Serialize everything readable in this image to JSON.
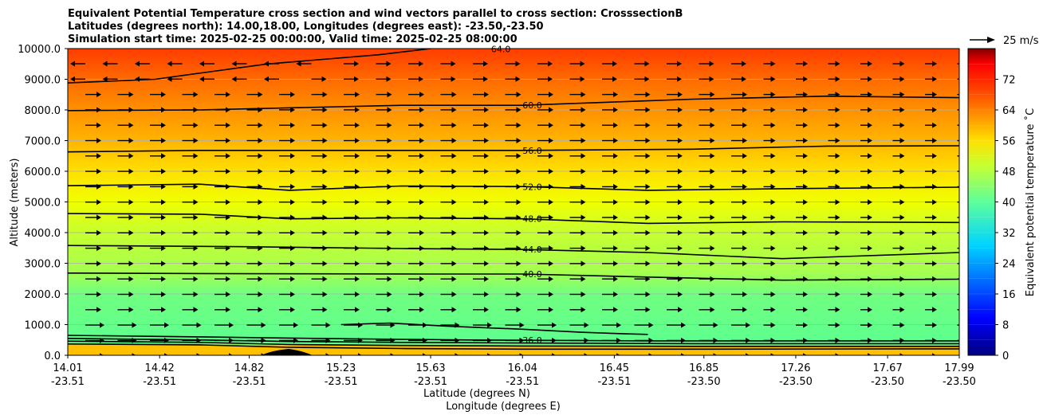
{
  "chart_data": {
    "type": "heatmap",
    "title_lines": [
      "Equivalent Potential Temperature cross section and wind vectors parallel to cross section: CrosssectionB",
      "Latitudes (degrees north): 14.00,18.00, Longitudes (degrees east): -23.50,-23.50",
      "Simulation start time: 2025-02-25 00:00:00, Valid time: 2025-02-25 08:00:00"
    ],
    "xlabel": "Latitude (degrees N)",
    "xlabel2": "Longitude (degrees E)",
    "ylabel": "Altitude (meters)",
    "xlim": [
      14.01,
      17.99
    ],
    "ylim": [
      0,
      10000
    ],
    "x_ticks": [
      {
        "lat": "14.01",
        "lon": "-23.51",
        "v": 14.01
      },
      {
        "lat": "14.42",
        "lon": "-23.51",
        "v": 14.42
      },
      {
        "lat": "14.82",
        "lon": "-23.51",
        "v": 14.82
      },
      {
        "lat": "15.23",
        "lon": "-23.51",
        "v": 15.23
      },
      {
        "lat": "15.63",
        "lon": "-23.51",
        "v": 15.63
      },
      {
        "lat": "16.04",
        "lon": "-23.51",
        "v": 16.04
      },
      {
        "lat": "16.45",
        "lon": "-23.51",
        "v": 16.45
      },
      {
        "lat": "16.85",
        "lon": "-23.50",
        "v": 16.85
      },
      {
        "lat": "17.26",
        "lon": "-23.50",
        "v": 17.26
      },
      {
        "lat": "17.67",
        "lon": "-23.50",
        "v": 17.67
      },
      {
        "lat": "17.99",
        "lon": "-23.50",
        "v": 17.99
      }
    ],
    "y_ticks": [
      {
        "label": "0.0",
        "v": 0
      },
      {
        "label": "1000.0",
        "v": 1000
      },
      {
        "label": "2000.0",
        "v": 2000
      },
      {
        "label": "3000.0",
        "v": 3000
      },
      {
        "label": "4000.0",
        "v": 4000
      },
      {
        "label": "5000.0",
        "v": 5000
      },
      {
        "label": "6000.0",
        "v": 6000
      },
      {
        "label": "7000.0",
        "v": 7000
      },
      {
        "label": "8000.0",
        "v": 8000
      },
      {
        "label": "9000.0",
        "v": 9000
      },
      {
        "label": "10000.0",
        "v": 10000
      }
    ],
    "grid": true,
    "colorbar": {
      "label": "Equivalent potential temperature ˚C",
      "min": 0,
      "max": 80,
      "ticks": [
        "0",
        "8",
        "16",
        "24",
        "32",
        "40",
        "48",
        "56",
        "64",
        "72"
      ]
    },
    "quiver_key": {
      "label": "25 m/s"
    },
    "contours": [
      {
        "level": "36.0",
        "label": "36.0",
        "points": [
          [
            14.01,
            650
          ],
          [
            14.6,
            600
          ],
          [
            15.0,
            560
          ],
          [
            15.23,
            540
          ],
          [
            15.8,
            500
          ],
          [
            16.6,
            470
          ],
          [
            17.99,
            470
          ]
        ]
      },
      {
        "level": "40.0",
        "label": "40.0",
        "points": [
          [
            14.01,
            2680
          ],
          [
            14.8,
            2660
          ],
          [
            15.6,
            2650
          ],
          [
            16.04,
            2650
          ],
          [
            16.6,
            2550
          ],
          [
            17.2,
            2450
          ],
          [
            17.99,
            2480
          ]
        ]
      },
      {
        "level": "44.0",
        "label": "44.0",
        "points": [
          [
            14.01,
            3580
          ],
          [
            14.8,
            3540
          ],
          [
            15.5,
            3480
          ],
          [
            16.04,
            3450
          ],
          [
            16.6,
            3350
          ],
          [
            17.2,
            3150
          ],
          [
            17.99,
            3350
          ]
        ]
      },
      {
        "level": "48.0",
        "label": "48.0",
        "points": [
          [
            14.01,
            4620
          ],
          [
            14.6,
            4600
          ],
          [
            15.0,
            4450
          ],
          [
            15.5,
            4480
          ],
          [
            16.04,
            4450
          ],
          [
            16.6,
            4300
          ],
          [
            17.2,
            4350
          ],
          [
            17.99,
            4330
          ]
        ]
      },
      {
        "level": "52.0",
        "label": "52.0",
        "points": [
          [
            14.01,
            5530
          ],
          [
            14.6,
            5580
          ],
          [
            15.0,
            5380
          ],
          [
            15.5,
            5520
          ],
          [
            16.04,
            5500
          ],
          [
            16.6,
            5380
          ],
          [
            17.2,
            5430
          ],
          [
            17.99,
            5480
          ]
        ]
      },
      {
        "level": "56.0",
        "label": "56.0",
        "points": [
          [
            14.01,
            6630
          ],
          [
            14.6,
            6680
          ],
          [
            15.5,
            6680
          ],
          [
            16.04,
            6680
          ],
          [
            16.8,
            6720
          ],
          [
            17.4,
            6820
          ],
          [
            17.99,
            6830
          ]
        ]
      },
      {
        "level": "60.0",
        "label": "60.0",
        "points": [
          [
            14.01,
            7980
          ],
          [
            14.6,
            8000
          ],
          [
            15.5,
            8150
          ],
          [
            16.04,
            8150
          ],
          [
            16.8,
            8350
          ],
          [
            17.4,
            8450
          ],
          [
            17.99,
            8400
          ]
        ]
      },
      {
        "level": "64.0",
        "label": "64.0",
        "points": [
          [
            14.01,
            8880
          ],
          [
            14.4,
            9000
          ],
          [
            14.9,
            9500
          ],
          [
            15.4,
            9800
          ],
          [
            15.63,
            10000
          ]
        ]
      }
    ],
    "extra_contours": [
      {
        "level": "36.0",
        "points": [
          [
            15.23,
            1000
          ],
          [
            15.45,
            1050
          ],
          [
            15.7,
            950
          ],
          [
            16.04,
            850
          ],
          [
            16.3,
            750
          ],
          [
            16.5,
            700
          ],
          [
            16.6,
            680
          ]
        ]
      },
      {
        "level": "40.0",
        "points": [
          [
            14.01,
            550
          ],
          [
            14.6,
            500
          ],
          [
            15.0,
            450
          ],
          [
            15.5,
            420
          ],
          [
            16.04,
            400
          ],
          [
            16.8,
            380
          ],
          [
            17.99,
            380
          ]
        ]
      },
      {
        "level": "44.0",
        "points": [
          [
            14.01,
            460
          ],
          [
            14.6,
            420
          ],
          [
            15.0,
            350
          ],
          [
            15.5,
            320
          ],
          [
            16.04,
            300
          ],
          [
            16.8,
            290
          ],
          [
            17.99,
            290
          ]
        ]
      },
      {
        "level": "52.0",
        "points": [
          [
            14.01,
            370
          ],
          [
            14.6,
            340
          ],
          [
            15.0,
            260
          ],
          [
            15.5,
            220
          ],
          [
            16.04,
            200
          ],
          [
            16.8,
            200
          ],
          [
            17.99,
            210
          ]
        ]
      }
    ],
    "inline_labels": [
      "36.0",
      "36.0",
      "36.0",
      "44.0",
      "48.0",
      "52.0",
      "40.0",
      "32.0"
    ]
  }
}
